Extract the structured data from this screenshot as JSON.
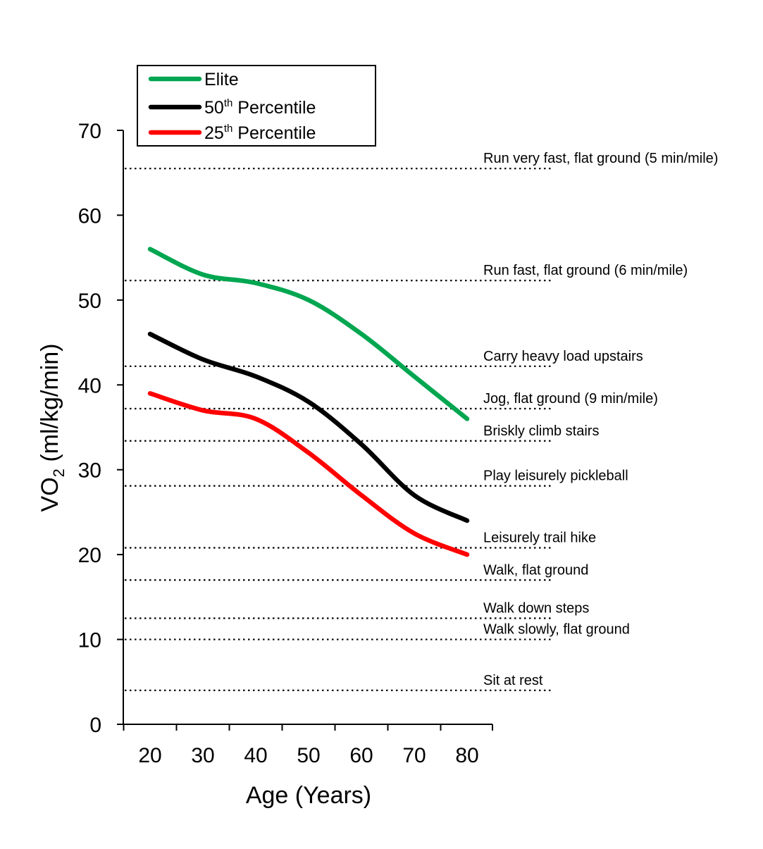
{
  "chart_data": {
    "type": "line",
    "title": "",
    "xlabel": "Age (Years)",
    "ylabel": {
      "main": "VO",
      "sub": "2",
      "rest": " (ml/kg/min)"
    },
    "x": [
      20,
      30,
      40,
      50,
      60,
      70,
      80
    ],
    "x_ticks": [
      "20",
      "30",
      "40",
      "50",
      "60",
      "70",
      "80"
    ],
    "y_ticks": [
      "0",
      "10",
      "20",
      "30",
      "40",
      "50",
      "60",
      "70"
    ],
    "xlim": [
      15,
      84
    ],
    "ylim": [
      0,
      70
    ],
    "grid": false,
    "legend_position": "top-left",
    "series": [
      {
        "name": "Elite",
        "legend": {
          "base": "Elite",
          "sup": "",
          "rest": ""
        },
        "color": "#00a650",
        "points": [
          [
            20,
            56
          ],
          [
            30,
            53
          ],
          [
            40,
            52
          ],
          [
            50,
            50
          ],
          [
            60,
            46
          ],
          [
            70,
            41
          ],
          [
            80,
            36
          ]
        ]
      },
      {
        "name": "50th Percentile",
        "legend": {
          "base": "50",
          "sup": "th",
          "rest": " Percentile"
        },
        "color": "#000000",
        "points": [
          [
            20,
            46
          ],
          [
            30,
            43
          ],
          [
            40,
            41
          ],
          [
            50,
            38
          ],
          [
            60,
            33
          ],
          [
            70,
            27
          ],
          [
            80,
            24
          ]
        ]
      },
      {
        "name": "25th Percentile",
        "legend": {
          "base": "25",
          "sup": "th",
          "rest": " Percentile"
        },
        "color": "#ff0000",
        "points": [
          [
            20,
            39
          ],
          [
            30,
            37
          ],
          [
            40,
            36
          ],
          [
            50,
            32
          ],
          [
            60,
            27
          ],
          [
            70,
            22.5
          ],
          [
            80,
            20
          ]
        ]
      }
    ],
    "reference_lines": [
      {
        "label": "Run very fast, flat ground (5 min/mile)",
        "value": 65.5
      },
      {
        "label": "Run fast, flat ground (6 min/mile)",
        "value": 52.3
      },
      {
        "label": "Carry heavy load upstairs",
        "value": 42.2
      },
      {
        "label": "Jog, flat ground (9 min/mile)",
        "value": 37.2
      },
      {
        "label": "Briskly climb stairs",
        "value": 33.4
      },
      {
        "label": "Play leisurely pickleball",
        "value": 28.1
      },
      {
        "label": "Leisurely trail hike",
        "value": 20.8
      },
      {
        "label": "Walk, flat ground",
        "value": 17
      },
      {
        "label": "Walk down steps",
        "value": 12.5
      },
      {
        "label": "Walk slowly, flat ground",
        "value": 10
      },
      {
        "label": "Sit at rest",
        "value": 4
      }
    ]
  }
}
